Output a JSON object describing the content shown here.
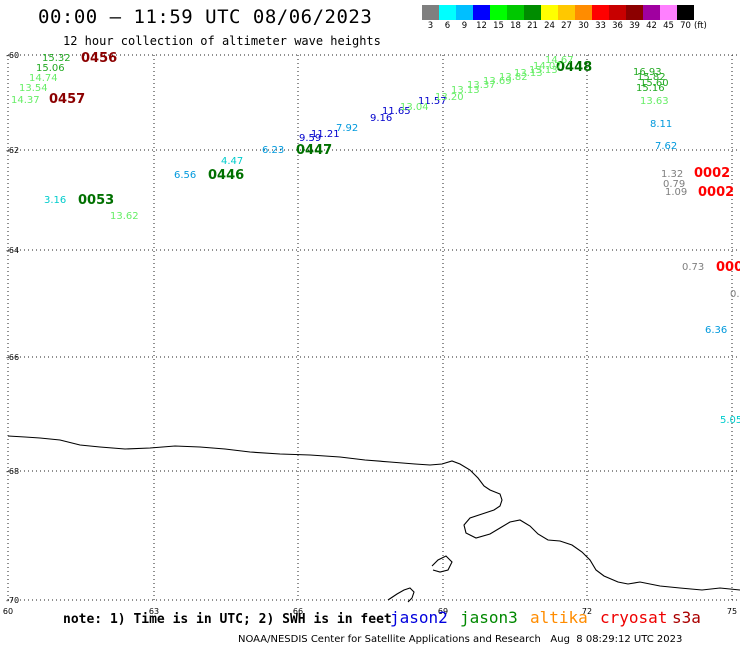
{
  "header": {
    "title": "00:00 — 11:59 UTC 08/06/2023",
    "subtitle": "12 hour collection of altimeter wave heights"
  },
  "colorbar": {
    "unit": "(ft)",
    "bins": [
      {
        "label": "3",
        "color": "#7f7f7f"
      },
      {
        "label": "6",
        "color": "#00ffff"
      },
      {
        "label": "9",
        "color": "#00bfff"
      },
      {
        "label": "12",
        "color": "#0000ff"
      },
      {
        "label": "15",
        "color": "#00ff00"
      },
      {
        "label": "18",
        "color": "#00c800"
      },
      {
        "label": "21",
        "color": "#008c00"
      },
      {
        "label": "24",
        "color": "#ffff00"
      },
      {
        "label": "27",
        "color": "#ffc800"
      },
      {
        "label": "30",
        "color": "#ff8c00"
      },
      {
        "label": "33",
        "color": "#ff0000"
      },
      {
        "label": "36",
        "color": "#c80000"
      },
      {
        "label": "39",
        "color": "#8c0000"
      },
      {
        "label": "42",
        "color": "#a000a0"
      },
      {
        "label": "45",
        "color": "#ff80ff"
      },
      {
        "label": "70",
        "color": "#000000"
      }
    ]
  },
  "map": {
    "lon_range": [
      60,
      75
    ],
    "lat_range": [
      -60,
      -70
    ],
    "lat_ticks": [
      "-60",
      "-62",
      "-64",
      "-66",
      "-68",
      "-70"
    ],
    "lon_ticks": [
      "60",
      "63",
      "66",
      "69",
      "72",
      "75"
    ],
    "pass_labels": [
      {
        "text": "0456",
        "color": "#8b0000"
      },
      {
        "text": "0457",
        "color": "#8b0000"
      },
      {
        "text": "0053",
        "color": "#007000"
      },
      {
        "text": "0446",
        "color": "#007000"
      },
      {
        "text": "0447",
        "color": "#007000"
      },
      {
        "text": "0448",
        "color": "#007000"
      },
      {
        "text": "0002",
        "color": "#ff0000"
      },
      {
        "text": "0002",
        "color": "#ff0000"
      },
      {
        "text": "000",
        "color": "#ff0000"
      }
    ],
    "wave_heights": [
      {
        "text": "15.32",
        "color": "#22aa22"
      },
      {
        "text": "15.06",
        "color": "#22aa22"
      },
      {
        "text": "14.74",
        "color": "#66ee66"
      },
      {
        "text": "13.54",
        "color": "#66ee66"
      },
      {
        "text": "14.37",
        "color": "#66ee66"
      },
      {
        "text": "3.16",
        "color": "#00cccc"
      },
      {
        "text": "13.62",
        "color": "#66ee66"
      },
      {
        "text": "6.56",
        "color": "#0099dd"
      },
      {
        "text": "4.47",
        "color": "#00cccc"
      },
      {
        "text": "6.23",
        "color": "#0099dd"
      },
      {
        "text": "9.59",
        "color": "#0000cc"
      },
      {
        "text": "11.21",
        "color": "#0000cc"
      },
      {
        "text": "7.92",
        "color": "#0099dd"
      },
      {
        "text": "9.16",
        "color": "#0000cc"
      },
      {
        "text": "11.65",
        "color": "#0000cc"
      },
      {
        "text": "11.57",
        "color": "#0000cc"
      },
      {
        "text": "13.04",
        "color": "#66ee66"
      },
      {
        "text": "13.20",
        "color": "#66ee66"
      },
      {
        "text": "13.13",
        "color": "#66ee66"
      },
      {
        "text": "13.37",
        "color": "#66ee66"
      },
      {
        "text": "13.69",
        "color": "#66ee66"
      },
      {
        "text": "13.82",
        "color": "#66ee66"
      },
      {
        "text": "13.13",
        "color": "#66ee66"
      },
      {
        "text": "13.13",
        "color": "#66ee66"
      },
      {
        "text": "14.07",
        "color": "#66ee66"
      },
      {
        "text": "14.67",
        "color": "#66ee66"
      },
      {
        "text": "16.93",
        "color": "#22aa22"
      },
      {
        "text": "15.82",
        "color": "#22aa22"
      },
      {
        "text": "15.60",
        "color": "#22aa22"
      },
      {
        "text": "15.16",
        "color": "#22aa22"
      },
      {
        "text": "13.63",
        "color": "#66ee66"
      },
      {
        "text": "8.11",
        "color": "#0099dd"
      },
      {
        "text": "7.62",
        "color": "#0099dd"
      },
      {
        "text": "1.32",
        "color": "#7f7f7f"
      },
      {
        "text": "0.79",
        "color": "#7f7f7f"
      },
      {
        "text": "1.09",
        "color": "#7f7f7f"
      },
      {
        "text": "0.73",
        "color": "#7f7f7f"
      },
      {
        "text": "0.",
        "color": "#7f7f7f"
      },
      {
        "text": "6.36",
        "color": "#0099dd"
      },
      {
        "text": "5.05",
        "color": "#00cccc"
      }
    ]
  },
  "note": {
    "text": "note: 1) Time is in UTC; 2) SWH is in feet",
    "satellites": [
      {
        "name": "jason2",
        "color": "#0000dd"
      },
      {
        "name": "jason3",
        "color": "#008800"
      },
      {
        "name": "altika",
        "color": "#ff8c00"
      },
      {
        "name": "cryosat",
        "color": "#ee0000"
      },
      {
        "name": "s3a",
        "color": "#aa0000"
      }
    ]
  },
  "footer": {
    "credit": "NOAA/NESDIS Center for Satellite Applications and Research",
    "timestamp": "Aug  8 08:29:12 UTC 2023"
  }
}
